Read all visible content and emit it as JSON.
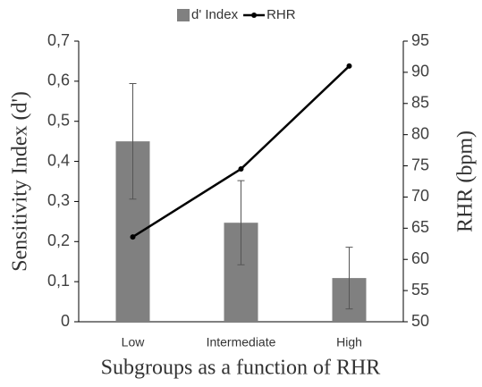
{
  "chart_data": {
    "type": "bar_line",
    "categories": [
      "Low",
      "Intermediate",
      "High"
    ],
    "series": [
      {
        "name": "d' Index",
        "color": "#808080",
        "values": [
          0.45,
          0.247,
          0.109
        ],
        "errors": [
          0.144,
          0.105,
          0.077
        ]
      },
      {
        "name": "RHR",
        "color": "#000000",
        "values": [
          63.6,
          74.5,
          91.0
        ],
        "axis": "y2"
      }
    ],
    "ylim": [
      0,
      0.7
    ],
    "yticks": [
      0,
      {
        "value": 0.1,
        "label": "0,1"
      },
      {
        "value": 0.2,
        "label": "0,2"
      },
      {
        "value": 0.3,
        "label": "0,3"
      },
      {
        "value": 0.4,
        "label": "0,4"
      },
      {
        "value": 0.5,
        "label": "0,5"
      },
      {
        "value": 0.6,
        "label": "0,6"
      },
      {
        "value": 0.7,
        "label": "0,7"
      }
    ],
    "y2lim": [
      50,
      95
    ],
    "y2ticks": [
      50,
      55,
      60,
      65,
      70,
      75,
      80,
      85,
      90,
      95
    ],
    "ylabel": "Sensitivity Index (d')",
    "y2label": "RHR (bpm)",
    "xlabel": "Subgroups as a function of RHR",
    "legend": "top"
  }
}
